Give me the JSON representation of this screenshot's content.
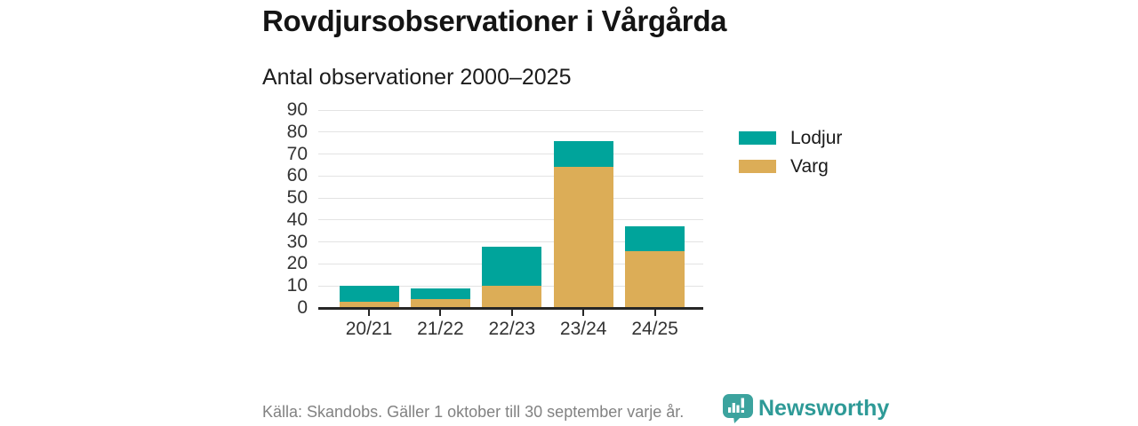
{
  "chart_data": {
    "type": "bar",
    "stacked": true,
    "title": "Rovdjursobservationer i Vårgårda",
    "subtitle": "Antal observationer 2000–2025",
    "categories": [
      "20/21",
      "21/22",
      "22/23",
      "23/24",
      "24/25"
    ],
    "series": [
      {
        "name": "Varg",
        "color": "#DCAD57",
        "values": [
          3,
          4,
          10,
          64,
          26
        ]
      },
      {
        "name": "Lodjur",
        "color": "#00A49B",
        "values": [
          7,
          5,
          18,
          12,
          11
        ]
      }
    ],
    "stack_totals": [
      10,
      9,
      28,
      76,
      37
    ],
    "ylim": [
      0,
      90
    ],
    "yticks": [
      0,
      10,
      20,
      30,
      40,
      50,
      60,
      70,
      80,
      90
    ],
    "grid": "horizontal",
    "legend_position": "right"
  },
  "legend": {
    "items": [
      {
        "label": "Lodjur",
        "color": "#00A49B"
      },
      {
        "label": "Varg",
        "color": "#DCAD57"
      }
    ]
  },
  "footer": {
    "source": "Källa: Skandobs. Gäller 1 oktober till 30 september varje år.",
    "brand": "Newsworthy"
  },
  "colors": {
    "lodjur": "#00A49B",
    "varg": "#DCAD57",
    "gridline": "#e3e3e3",
    "axis": "#262626",
    "axis_text": "#333333",
    "footer_text": "#828282",
    "brand_icon": "#3CA39E",
    "brand_text": "#2E9A97"
  }
}
